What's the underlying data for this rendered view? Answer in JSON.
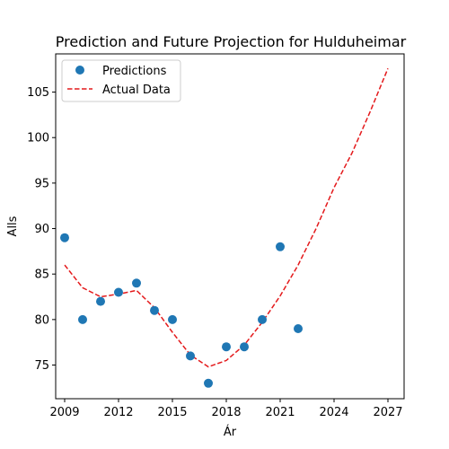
{
  "chart_data": {
    "type": "scatter",
    "title": "Prediction and Future Projection for Hulduheimar",
    "xlabel": "Ár",
    "ylabel": "Alls",
    "xlim": [
      2008.5,
      2027.9
    ],
    "ylim": [
      71.3,
      109.2
    ],
    "x_ticks": [
      2009,
      2012,
      2015,
      2018,
      2021,
      2024,
      2027
    ],
    "y_ticks": [
      75,
      80,
      85,
      90,
      95,
      100,
      105
    ],
    "grid": false,
    "legend_position": "upper-left",
    "series": [
      {
        "name": "Predictions",
        "kind": "scatter",
        "color": "#1f77b4",
        "x": [
          2009,
          2010,
          2011,
          2012,
          2013,
          2014,
          2015,
          2016,
          2017,
          2018,
          2019,
          2020,
          2021,
          2022
        ],
        "y": [
          89,
          80,
          82,
          83,
          84,
          81,
          80,
          76,
          73,
          77,
          77,
          80,
          88,
          79
        ]
      },
      {
        "name": "Actual Data",
        "kind": "line",
        "style": "dashed",
        "color": "#e41a1c",
        "x": [
          2009,
          2010,
          2011,
          2012,
          2013,
          2014,
          2015,
          2016,
          2017,
          2018,
          2019,
          2020,
          2021,
          2022,
          2023,
          2024,
          2025,
          2026,
          2027
        ],
        "y": [
          86.0,
          83.5,
          82.5,
          82.8,
          83.2,
          81.3,
          78.6,
          76.1,
          74.8,
          75.5,
          77.2,
          79.7,
          82.6,
          86.0,
          90.0,
          94.5,
          98.3,
          102.8,
          107.6
        ]
      }
    ]
  }
}
